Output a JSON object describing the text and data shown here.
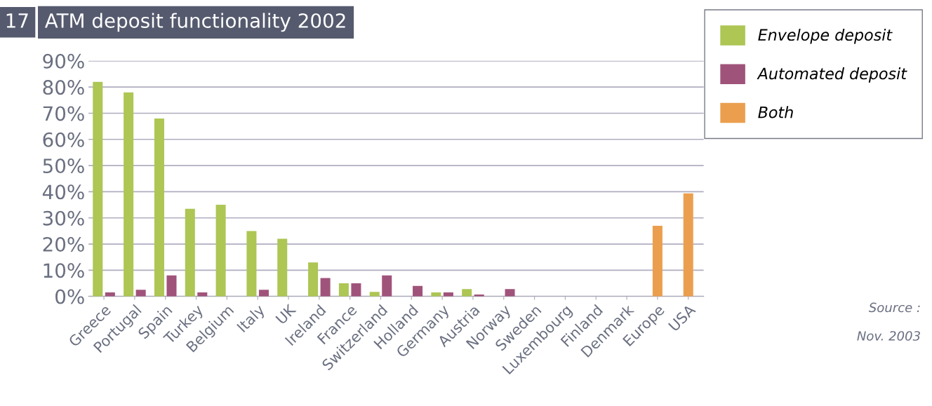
{
  "chart_data": {
    "type": "bar",
    "title": "ATM deposit functionality 2002",
    "categories": [
      "Greece",
      "Portugal",
      "Spain",
      "Turkey",
      "Belgium",
      "Italy",
      "UK",
      "Ireland",
      "France",
      "Switzerland",
      "Holland",
      "Germany",
      "Austria",
      "Norway",
      "Sweden",
      "Luxembourg",
      "Finland",
      "Denmark",
      "Europe",
      "USA"
    ],
    "series": [
      {
        "name": "Envelope deposit",
        "color": "#adc654",
        "values": [
          82,
          78,
          68,
          33.5,
          35,
          25,
          22,
          13,
          5,
          1.7,
          0,
          1.5,
          2.8,
          0,
          0,
          0,
          0,
          0,
          null,
          null
        ]
      },
      {
        "name": "Automated deposit",
        "color": "#a0537a",
        "values": [
          1.5,
          2.5,
          8,
          1.5,
          0,
          2.5,
          0,
          7,
          5,
          8,
          4,
          1.5,
          0.7,
          2.8,
          0,
          0,
          0,
          0,
          null,
          null
        ]
      },
      {
        "name": "Both",
        "color": "#eb9f4e",
        "values": [
          null,
          null,
          null,
          null,
          null,
          null,
          null,
          null,
          null,
          null,
          null,
          null,
          null,
          null,
          null,
          null,
          null,
          null,
          27,
          39.4
        ]
      }
    ],
    "ylim": [
      0,
      90
    ],
    "yticks": [
      {
        "value": 0,
        "label": "0%"
      },
      {
        "value": 10,
        "label": "10%"
      },
      {
        "value": 20,
        "label": "20%"
      },
      {
        "value": 30,
        "label": "30%"
      },
      {
        "value": 40,
        "label": "40%"
      },
      {
        "value": 50,
        "label": "50%"
      },
      {
        "value": 60,
        "label": "60%"
      },
      {
        "value": 70,
        "label": "70%"
      },
      {
        "value": 80,
        "label": "80%"
      },
      {
        "value": 90,
        "label": "90%"
      }
    ],
    "grid": "y",
    "legend": "top right",
    "annotations": [
      "17",
      "Source :",
      "Nov. 2003"
    ]
  }
}
